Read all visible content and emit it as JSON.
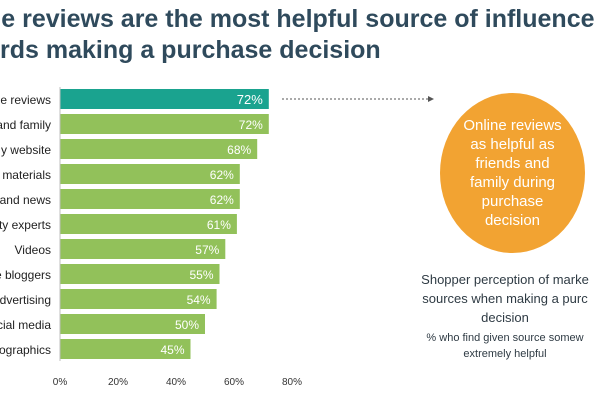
{
  "title_line1": "ne reviews are the most helpful source of influence",
  "title_line2": "rds making a purchase decision",
  "callout_text": "Online reviews as helpful as friends and family during purchase decision",
  "caption_line1": "Shopper perception of marke sources when making a purc decision",
  "caption_line2": "% who find given source somew extremely helpful",
  "colors": {
    "highlight": "#1aa38f",
    "bar": "#92c15a",
    "callout": "#f2a332",
    "title": "#2f4a5c"
  },
  "chart_data": {
    "type": "bar",
    "orientation": "horizontal",
    "categories": [
      "e reviews",
      "and family",
      "y website",
      "materials",
      "and news",
      "ty experts",
      "Videos",
      "e bloggers",
      "dvertising",
      "cial media",
      "ographics"
    ],
    "values": [
      72,
      72,
      68,
      62,
      62,
      61,
      57,
      55,
      54,
      50,
      45
    ],
    "value_labels": [
      "72%",
      "72%",
      "68%",
      "62%",
      "62%",
      "61%",
      "57%",
      "55%",
      "54%",
      "50%",
      "45%"
    ],
    "highlighted_index": 0,
    "xlim": [
      0,
      80
    ],
    "xticks": [
      0,
      20,
      40,
      60,
      80
    ],
    "xtick_labels": [
      "0%",
      "20%",
      "40%",
      "60%",
      "80%"
    ],
    "grid": false,
    "legend": "none"
  }
}
